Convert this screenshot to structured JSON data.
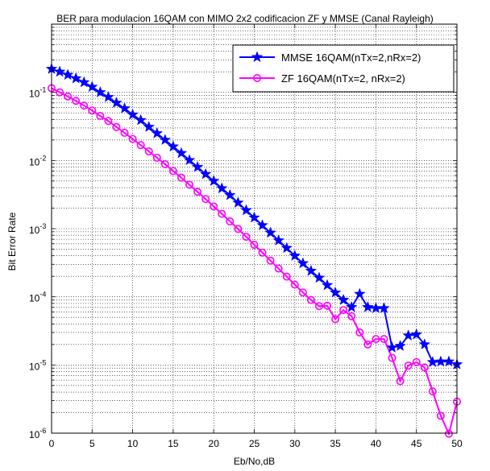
{
  "chart_data": {
    "type": "line",
    "title": "BER para modulacion 16QAM con MIMO 2x2 codificacion ZF y MMSE (Canal Rayleigh)",
    "xlabel": "Eb/No,dB",
    "ylabel": "Bit Error Rate",
    "xlim": [
      0,
      50
    ],
    "ylim": [
      1e-06,
      1
    ],
    "yscale": "log",
    "grid": true,
    "legend_position": "top-right",
    "x_ticks": [
      0,
      5,
      10,
      15,
      20,
      25,
      30,
      35,
      40,
      45,
      50
    ],
    "y_ticks": [
      {
        "value": 1e-06,
        "base": "10",
        "exp": "-6"
      },
      {
        "value": 1e-05,
        "base": "10",
        "exp": "-5"
      },
      {
        "value": 0.0001,
        "base": "10",
        "exp": "-4"
      },
      {
        "value": 0.001,
        "base": "10",
        "exp": "-3"
      },
      {
        "value": 0.01,
        "base": "10",
        "exp": "-2"
      },
      {
        "value": 0.1,
        "base": "10",
        "exp": "-1"
      }
    ],
    "x": [
      0,
      1,
      2,
      3,
      4,
      5,
      6,
      7,
      8,
      9,
      10,
      11,
      12,
      13,
      14,
      15,
      16,
      17,
      18,
      19,
      20,
      21,
      22,
      23,
      24,
      25,
      26,
      27,
      28,
      29,
      30,
      31,
      32,
      33,
      34,
      35,
      36,
      37,
      38,
      39,
      40,
      41,
      42,
      43,
      44,
      45,
      46,
      47,
      48,
      49,
      50
    ],
    "series": [
      {
        "name": "MMSE 16QAM(nTx=2,nRx=2)",
        "color": "#0000ff",
        "marker": "star",
        "values": [
          0.22,
          0.2,
          0.18,
          0.16,
          0.14,
          0.12,
          0.1,
          0.085,
          0.07,
          0.058,
          0.047,
          0.039,
          0.031,
          0.025,
          0.02,
          0.016,
          0.0128,
          0.0101,
          0.008,
          0.0063,
          0.005,
          0.0039,
          0.0031,
          0.0024,
          0.00186,
          0.00145,
          0.00112,
          0.00087,
          0.00067,
          0.00052,
          0.0004,
          0.00031,
          0.00024,
          0.00019,
          0.000148,
          0.000115,
          9e-05,
          7.05e-05,
          0.00011,
          7.05e-05,
          6.8e-05,
          6.8e-05,
          1.8e-05,
          1.9e-05,
          2.7e-05,
          2.8e-05,
          2e-05,
          1.1e-05,
          1.12e-05,
          1.12e-05,
          1.02e-05
        ]
      },
      {
        "name": "ZF 16QAM(nTx=2, nRx=2)",
        "color": "#ff00ff",
        "marker": "circle",
        "values": [
          0.115,
          0.1,
          0.087,
          0.075,
          0.064,
          0.054,
          0.045,
          0.038,
          0.031,
          0.0255,
          0.0207,
          0.0168,
          0.0136,
          0.011,
          0.0088,
          0.007,
          0.0056,
          0.0044,
          0.00347,
          0.00272,
          0.00212,
          0.00165,
          0.00128,
          0.00099,
          0.00076,
          0.00058,
          0.000445,
          0.00034,
          0.00026,
          0.000198,
          0.000151,
          0.000116,
          9e-05,
          7.3e-05,
          7.4e-05,
          4.7e-05,
          6.4e-05,
          5.2e-05,
          3e-05,
          2e-05,
          2.4e-05,
          2.4e-05,
          1.27e-05,
          5.8e-06,
          9.8e-06,
          1.1e-05,
          9.2e-06,
          4.1e-06,
          1.8e-06,
          9.8e-07,
          2.9e-06
        ]
      }
    ]
  }
}
